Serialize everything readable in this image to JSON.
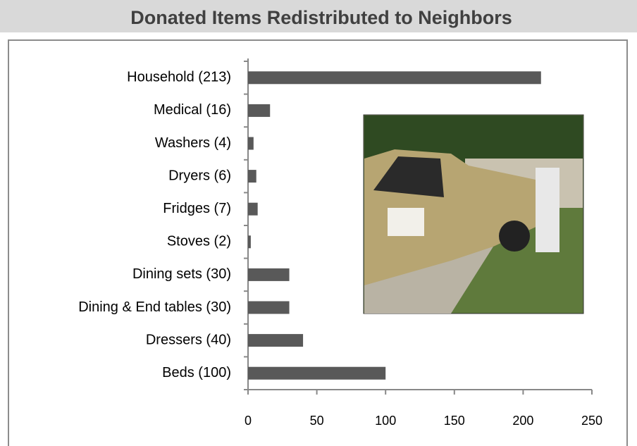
{
  "chart_data": {
    "type": "bar",
    "orientation": "horizontal",
    "title": "Donated Items Redistributed to Neighbors",
    "categories": [
      "Household (213)",
      "Medical (16)",
      "Washers (4)",
      "Dryers (6)",
      "Fridges (7)",
      "Stoves (2)",
      "Dining sets (30)",
      "Dining & End tables (30)",
      "Dressers (40)",
      "Beds (100)"
    ],
    "values": [
      213,
      16,
      4,
      6,
      7,
      2,
      30,
      30,
      40,
      100
    ],
    "color": "#595959",
    "xlim": [
      0,
      250
    ],
    "xticks": [
      0,
      50,
      100,
      150,
      200,
      250
    ]
  }
}
